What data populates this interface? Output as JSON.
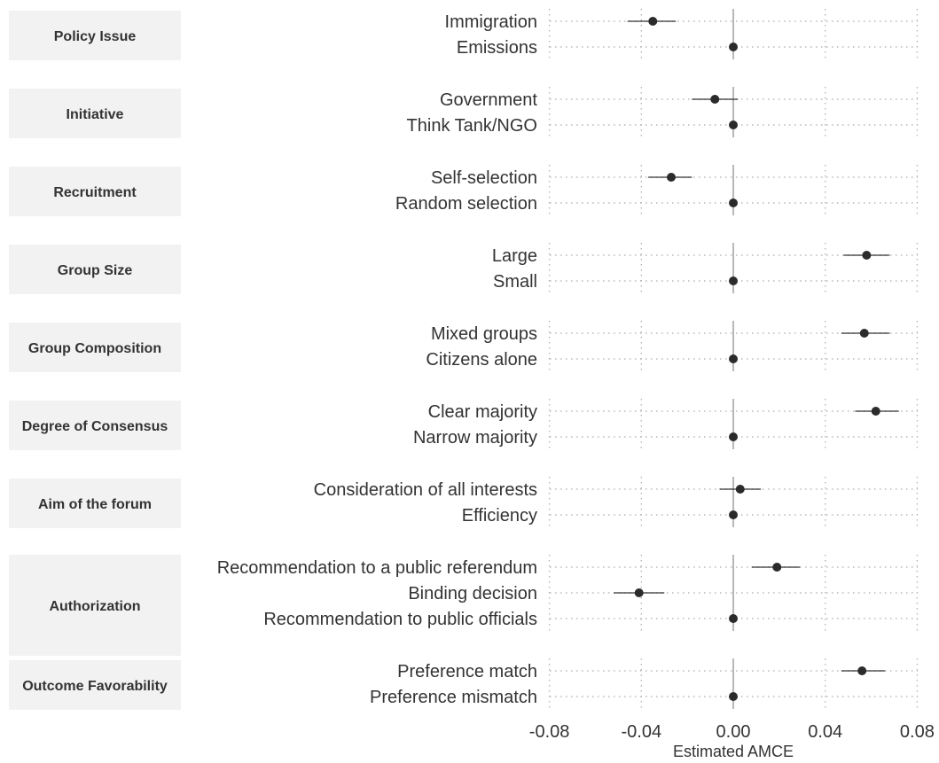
{
  "chart_data": {
    "type": "scatter",
    "title": "",
    "xlabel": "Estimated AMCE",
    "ylabel": "",
    "xlim": [
      -0.1,
      0.1
    ],
    "xticks": [
      -0.08,
      -0.04,
      0.0,
      0.04,
      0.08
    ],
    "xtick_labels": [
      "-0.08",
      "-0.04",
      "0.00",
      "0.04",
      "0.08"
    ],
    "grid": true,
    "reference_line_x": 0,
    "colors": {
      "point": "#2b2b2b",
      "facet_background": "#f2f2f2",
      "text": "#333333"
    },
    "facets": [
      {
        "label": "Policy Issue",
        "levels": [
          {
            "label": "Immigration",
            "estimate": -0.035,
            "ci_low": -0.046,
            "ci_high": -0.025
          },
          {
            "label": "Emissions",
            "estimate": 0.0,
            "ci_low": 0.0,
            "ci_high": 0.0
          }
        ]
      },
      {
        "label": "Initiative",
        "levels": [
          {
            "label": "Government",
            "estimate": -0.008,
            "ci_low": -0.018,
            "ci_high": 0.002
          },
          {
            "label": "Think Tank/NGO",
            "estimate": 0.0,
            "ci_low": 0.0,
            "ci_high": 0.0
          }
        ]
      },
      {
        "label": "Recruitment",
        "levels": [
          {
            "label": "Self-selection",
            "estimate": -0.027,
            "ci_low": -0.037,
            "ci_high": -0.018
          },
          {
            "label": "Random selection",
            "estimate": 0.0,
            "ci_low": 0.0,
            "ci_high": 0.0
          }
        ]
      },
      {
        "label": "Group Size",
        "levels": [
          {
            "label": "Large",
            "estimate": 0.058,
            "ci_low": 0.048,
            "ci_high": 0.068
          },
          {
            "label": "Small",
            "estimate": 0.0,
            "ci_low": 0.0,
            "ci_high": 0.0
          }
        ]
      },
      {
        "label": "Group Composition",
        "levels": [
          {
            "label": "Mixed groups",
            "estimate": 0.057,
            "ci_low": 0.047,
            "ci_high": 0.068
          },
          {
            "label": "Citizens alone",
            "estimate": 0.0,
            "ci_low": 0.0,
            "ci_high": 0.0
          }
        ]
      },
      {
        "label": "Degree of Consensus",
        "levels": [
          {
            "label": "Clear majority",
            "estimate": 0.062,
            "ci_low": 0.053,
            "ci_high": 0.072
          },
          {
            "label": "Narrow majority",
            "estimate": 0.0,
            "ci_low": 0.0,
            "ci_high": 0.0
          }
        ]
      },
      {
        "label": "Aim of the forum",
        "levels": [
          {
            "label": "Consideration of all interests",
            "estimate": 0.003,
            "ci_low": -0.006,
            "ci_high": 0.012
          },
          {
            "label": "Efficiency",
            "estimate": 0.0,
            "ci_low": 0.0,
            "ci_high": 0.0
          }
        ]
      },
      {
        "label": "Authorization",
        "levels": [
          {
            "label": "Recommendation to a public referendum",
            "estimate": 0.019,
            "ci_low": 0.008,
            "ci_high": 0.029
          },
          {
            "label": "Binding decision",
            "estimate": -0.041,
            "ci_low": -0.052,
            "ci_high": -0.03
          },
          {
            "label": "Recommendation to public officials",
            "estimate": 0.0,
            "ci_low": 0.0,
            "ci_high": 0.0
          }
        ]
      },
      {
        "label": "Outcome Favorability",
        "levels": [
          {
            "label": "Preference match",
            "estimate": 0.056,
            "ci_low": 0.047,
            "ci_high": 0.066
          },
          {
            "label": "Preference mismatch",
            "estimate": 0.0,
            "ci_low": 0.0,
            "ci_high": 0.0
          }
        ]
      }
    ]
  }
}
